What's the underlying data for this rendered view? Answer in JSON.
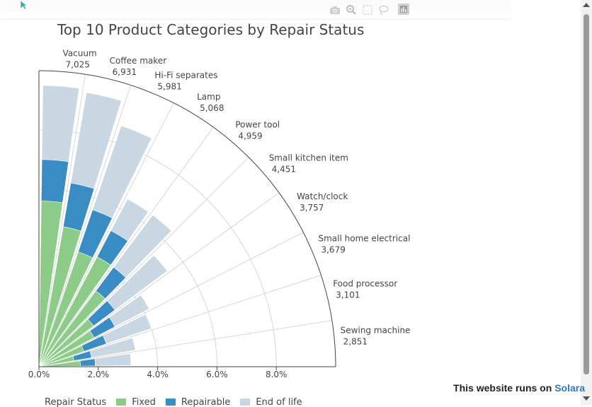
{
  "title": "Top 10 Product Categories by Repair Status",
  "modebar": [
    "camera-icon",
    "zoom-icon",
    "select-box-icon",
    "lasso-icon",
    "bar-chart-icon"
  ],
  "footer": {
    "prefix": "This website runs on",
    "link": "Solara"
  },
  "legend": {
    "title": "Repair Status",
    "items": [
      "Fixed",
      "Repairable",
      "End of life"
    ]
  },
  "colors": {
    "Fixed": "#8ccb88",
    "Repairable": "#3a8cc4",
    "End of life": "#c9d7e3"
  },
  "chart_data": {
    "type": "barpolar",
    "angular_range_deg": [
      0,
      90
    ],
    "radial_range": [
      0,
      10
    ],
    "radial_ticks": [
      "0.0%",
      "2.0%",
      "4.0%",
      "6.0%",
      "8.0%"
    ],
    "categories": [
      "Vacuum",
      "Coffee maker",
      "Hi-Fi separates",
      "Lamp",
      "Power tool",
      "Small kitchen item",
      "Watch/clock",
      "Small home electrical",
      "Food processor",
      "Sewing machine"
    ],
    "counts": [
      "7,025",
      "6,931",
      "5,981",
      "5,068",
      "4,959",
      "4,451",
      "3,757",
      "3,679",
      "3,101",
      "2,851"
    ],
    "series": [
      {
        "name": "Fixed",
        "values": [
          5.6,
          4.8,
          4.1,
          4.2,
          3.2,
          2.3,
          2.1,
          1.6,
          1.2,
          1.4
        ]
      },
      {
        "name": "Repairable",
        "values": [
          1.4,
          1.5,
          1.5,
          1.0,
          1.0,
          0.9,
          0.8,
          0.8,
          0.6,
          0.5
        ]
      },
      {
        "name": "End of life",
        "values": [
          2.5,
          3.1,
          3.0,
          1.2,
          2.2,
          2.2,
          1.3,
          1.6,
          1.5,
          1.2
        ]
      }
    ]
  }
}
